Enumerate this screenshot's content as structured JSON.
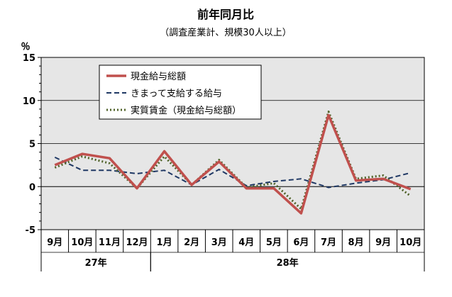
{
  "chart_data": {
    "type": "line",
    "title": "前年同月比",
    "subtitle": "（調査産業計、規模30人以上）",
    "ylabel": "％",
    "ylim": [
      -5,
      15
    ],
    "yticks": [
      -5,
      0,
      5,
      10,
      15
    ],
    "grid": true,
    "legend_position": "top-left",
    "categories": [
      "9月",
      "10月",
      "11月",
      "12月",
      "1月",
      "2月",
      "3月",
      "4月",
      "5月",
      "6月",
      "7月",
      "8月",
      "9月",
      "10月"
    ],
    "year_groups": [
      {
        "label": "27年",
        "start": 0,
        "count": 4
      },
      {
        "label": "28年",
        "start": 4,
        "count": 10
      }
    ],
    "series": [
      {
        "name": "現金給与総額",
        "color": "#c0504d",
        "style": "solid",
        "values": [
          2.5,
          3.8,
          3.3,
          -0.2,
          4.1,
          0.2,
          2.9,
          -0.2,
          -0.2,
          -3.1,
          8.3,
          0.7,
          0.9,
          -0.3
        ]
      },
      {
        "name": "きまって支給する給与",
        "color": "#1f3864",
        "style": "dashed",
        "values": [
          3.4,
          1.9,
          1.9,
          1.5,
          1.9,
          0.2,
          2.0,
          0.1,
          0.6,
          0.9,
          -0.1,
          0.4,
          0.8,
          1.6
        ]
      },
      {
        "name": "実質賃金（現金給与総額）",
        "color": "#4f6228",
        "style": "dotted",
        "values": [
          2.2,
          3.5,
          2.7,
          -0.2,
          3.5,
          0.2,
          3.1,
          -0.1,
          0.4,
          -2.6,
          8.7,
          0.9,
          1.3,
          -1.1
        ]
      }
    ]
  }
}
